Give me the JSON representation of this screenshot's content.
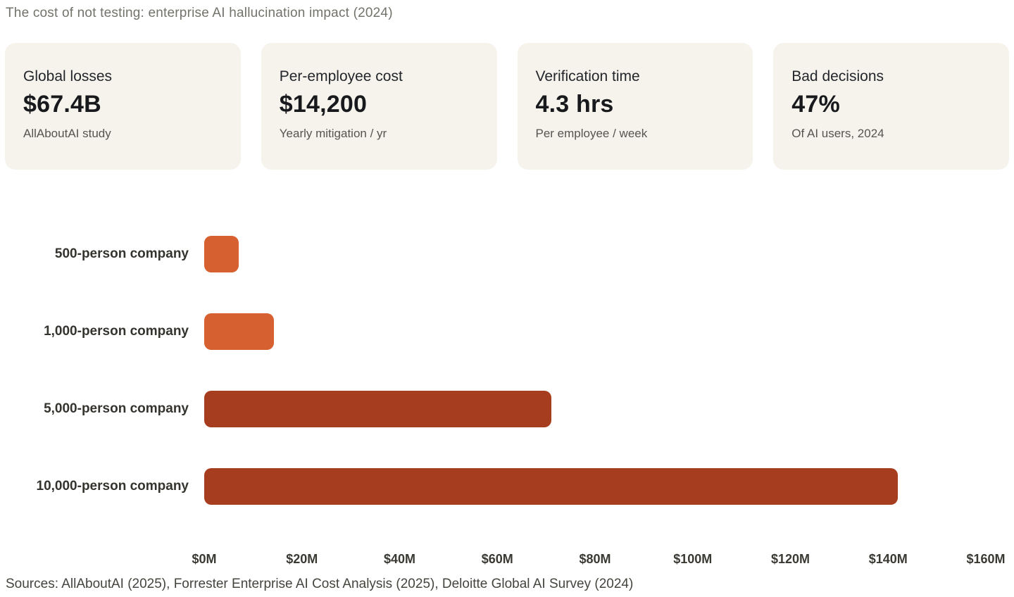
{
  "title": "The cost of not testing: enterprise AI hallucination impact (2024)",
  "cards": [
    {
      "label": "Global losses",
      "value": "$67.4B",
      "sub": "AllAboutAI study"
    },
    {
      "label": "Per-employee cost",
      "value": "$14,200",
      "sub": "Yearly mitigation / yr"
    },
    {
      "label": "Verification time",
      "value": "4.3 hrs",
      "sub": "Per employee / week"
    },
    {
      "label": "Bad decisions",
      "value": "47%",
      "sub": "Of AI users, 2024"
    }
  ],
  "chart_data": {
    "type": "bar",
    "orientation": "horizontal",
    "title": "The cost of not testing: enterprise AI hallucination impact (2024)",
    "categories": [
      "500-person company",
      "1,000-person company",
      "5,000-person company",
      "10,000-person company"
    ],
    "values": [
      7.1,
      14.2,
      71,
      142
    ],
    "value_unit": "million USD per year",
    "xlim": [
      0,
      160
    ],
    "x_ticks": [
      "$0M",
      "$20M",
      "$40M",
      "$60M",
      "$80M",
      "$100M",
      "$120M",
      "$140M",
      "$160M"
    ],
    "grid": false,
    "legend": false,
    "bar_colors": [
      "#d6602f",
      "#d6602f",
      "#a53d1e",
      "#a53d1e"
    ]
  },
  "colors": {
    "card_background": "#f5f3ec",
    "orange_bar": "#d6602f",
    "brick_bar": "#a53d1e"
  },
  "footer": "Sources: AllAboutAI (2025), Forrester Enterprise AI Cost Analysis (2025), Deloitte Global AI Survey (2024)"
}
